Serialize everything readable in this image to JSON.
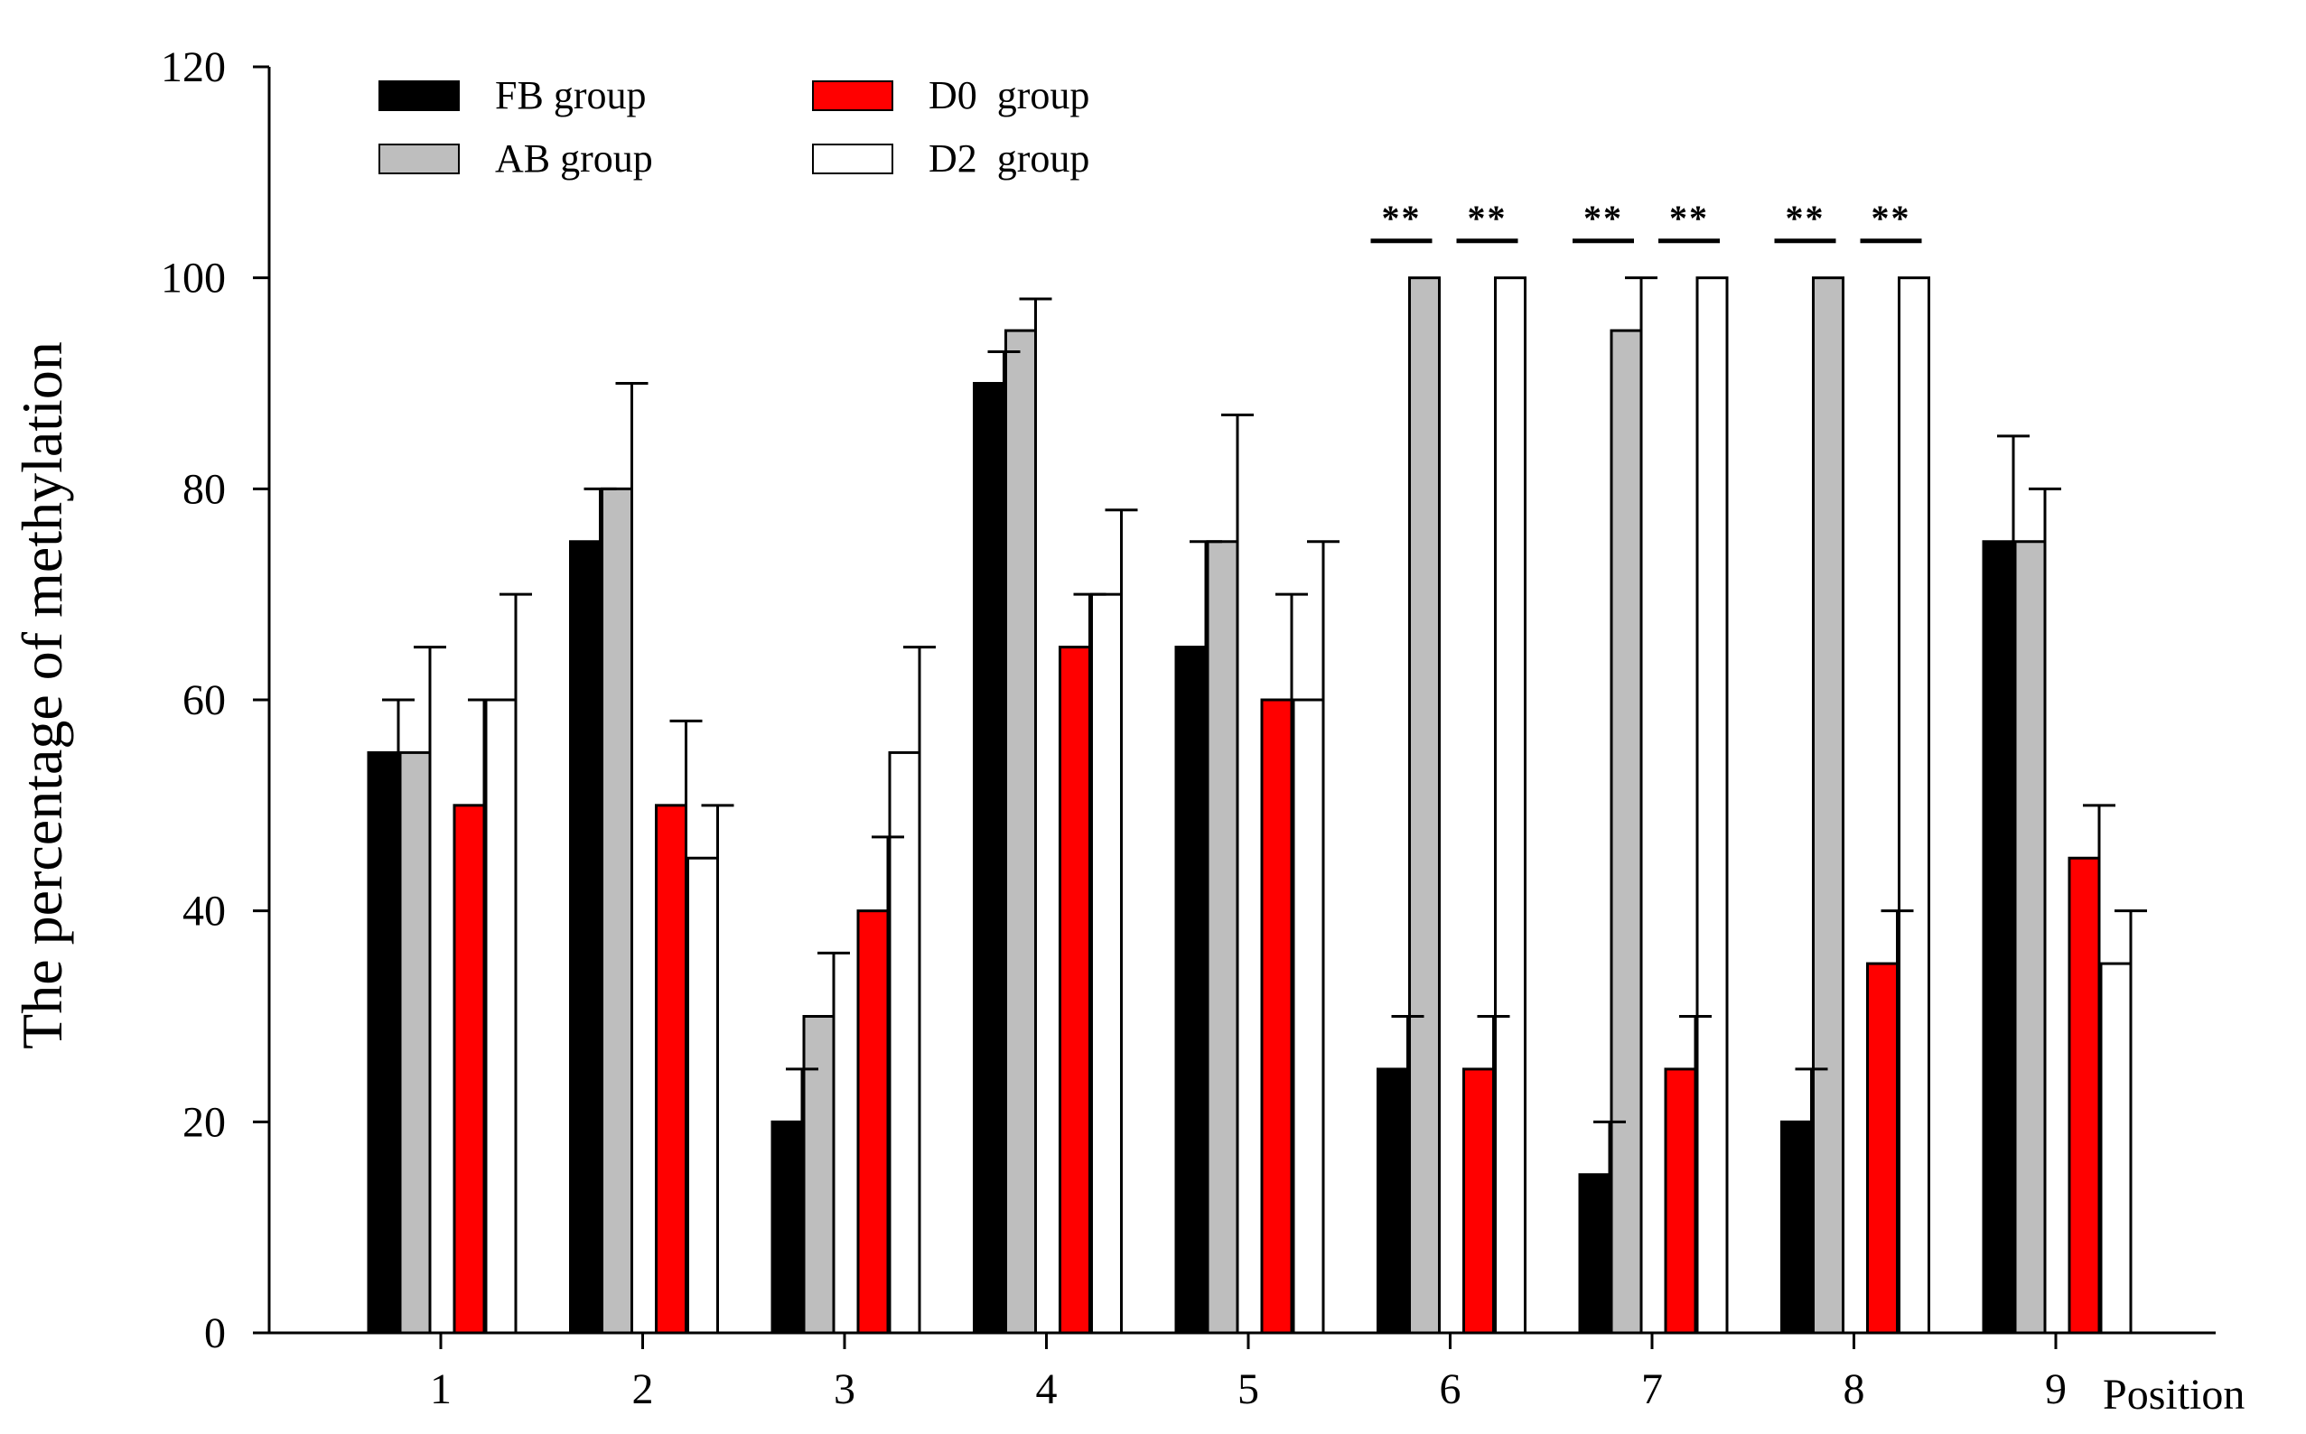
{
  "chart_data": {
    "type": "bar",
    "title": "",
    "xlabel": "Position",
    "ylabel": "The percentage of methylation",
    "ylim": [
      0,
      120
    ],
    "yticks": [
      0,
      20,
      40,
      60,
      80,
      100,
      120
    ],
    "categories": [
      "1",
      "2",
      "3",
      "4",
      "5",
      "6",
      "7",
      "8",
      "9"
    ],
    "series": [
      {
        "name": "FB group",
        "color": "#000000",
        "values": [
          55,
          75,
          20,
          90,
          65,
          25,
          15,
          20,
          75
        ],
        "errors": [
          5,
          5,
          5,
          3,
          10,
          5,
          5,
          5,
          10
        ]
      },
      {
        "name": "AB group",
        "color": "#bebebe",
        "values": [
          55,
          80,
          30,
          95,
          75,
          100,
          95,
          100,
          75
        ],
        "errors": [
          10,
          10,
          6,
          3,
          12,
          0,
          5,
          0,
          5
        ]
      },
      {
        "name": "D0  group",
        "color": "#ff0000",
        "values": [
          50,
          50,
          40,
          65,
          60,
          25,
          25,
          35,
          45
        ],
        "errors": [
          10,
          8,
          7,
          5,
          10,
          5,
          5,
          5,
          5
        ]
      },
      {
        "name": "D2  group",
        "color": "#ffffff",
        "values": [
          60,
          45,
          55,
          70,
          60,
          100,
          100,
          100,
          35
        ],
        "errors": [
          10,
          5,
          10,
          8,
          15,
          0,
          0,
          0,
          5
        ]
      }
    ],
    "significance": [
      {
        "category": "6",
        "pair": "FB-AB",
        "label": "**"
      },
      {
        "category": "6",
        "pair": "D0-D2",
        "label": "**"
      },
      {
        "category": "7",
        "pair": "FB-AB",
        "label": "**"
      },
      {
        "category": "7",
        "pair": "D0-D2",
        "label": "**"
      },
      {
        "category": "8",
        "pair": "FB-AB",
        "label": "**"
      },
      {
        "category": "8",
        "pair": "D0-D2",
        "label": "**"
      }
    ],
    "legend": {
      "placement": "top-left",
      "entries": [
        "FB group",
        "D0  group",
        "AB group",
        "D2  group"
      ]
    }
  }
}
